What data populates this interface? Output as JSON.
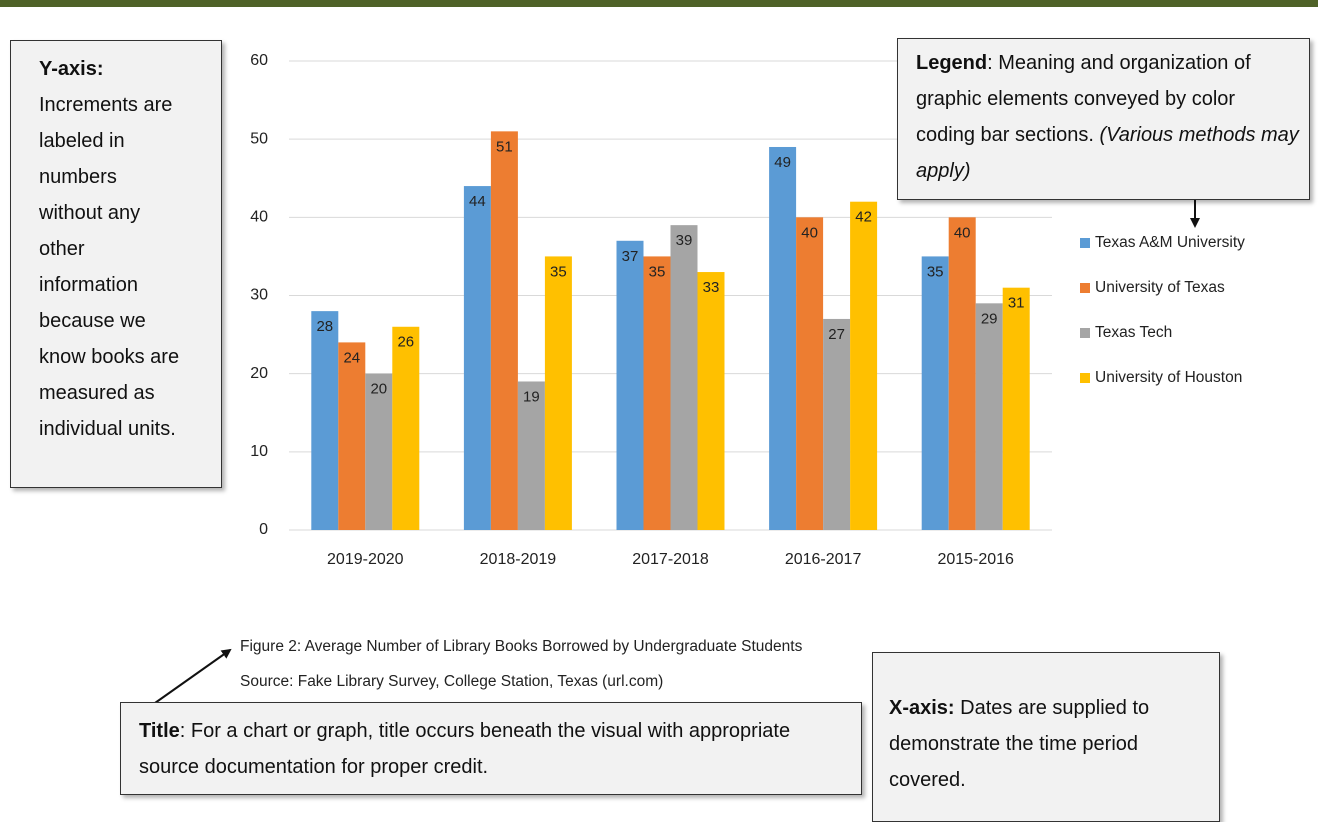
{
  "annotations": {
    "y_axis": {
      "label": "Y-axis:",
      "text": "Increments are labeled in numbers without any other information because we know books are measured as individual units."
    },
    "legend": {
      "label": "Legend",
      "text": ": Meaning and organization of graphic elements conveyed by color coding bar sections.",
      "note": "(Various methods may apply)"
    },
    "title": {
      "label": "Title",
      "text": ": For a chart or graph, title occurs beneath the visual with appropriate source documentation for proper credit."
    },
    "x_axis": {
      "label": "X-axis:",
      "text": "Dates are supplied to demonstrate the time period covered."
    }
  },
  "chart_data": {
    "type": "bar",
    "title": "Figure 2: Average Number of Library Books Borrowed by Undergraduate Students",
    "source": "Source: Fake Library Survey, College Station, Texas (url.com)",
    "categories": [
      "2019-2020",
      "2018-2019",
      "2017-2018",
      "2016-2017",
      "2015-2016"
    ],
    "series": [
      {
        "name": "Texas A&M University",
        "color": "#5b9bd5",
        "values": [
          28,
          44,
          37,
          49,
          35
        ]
      },
      {
        "name": "University of Texas",
        "color": "#ed7d31",
        "values": [
          24,
          51,
          35,
          40,
          40
        ]
      },
      {
        "name": "Texas Tech",
        "color": "#a5a5a5",
        "values": [
          20,
          19,
          39,
          27,
          29
        ]
      },
      {
        "name": "University of Houston",
        "color": "#ffc000",
        "values": [
          26,
          35,
          33,
          42,
          31
        ]
      }
    ],
    "ylim": [
      0,
      60
    ],
    "yticks": [
      0,
      10,
      20,
      30,
      40,
      50,
      60
    ],
    "grid": true,
    "data_labels": true
  }
}
